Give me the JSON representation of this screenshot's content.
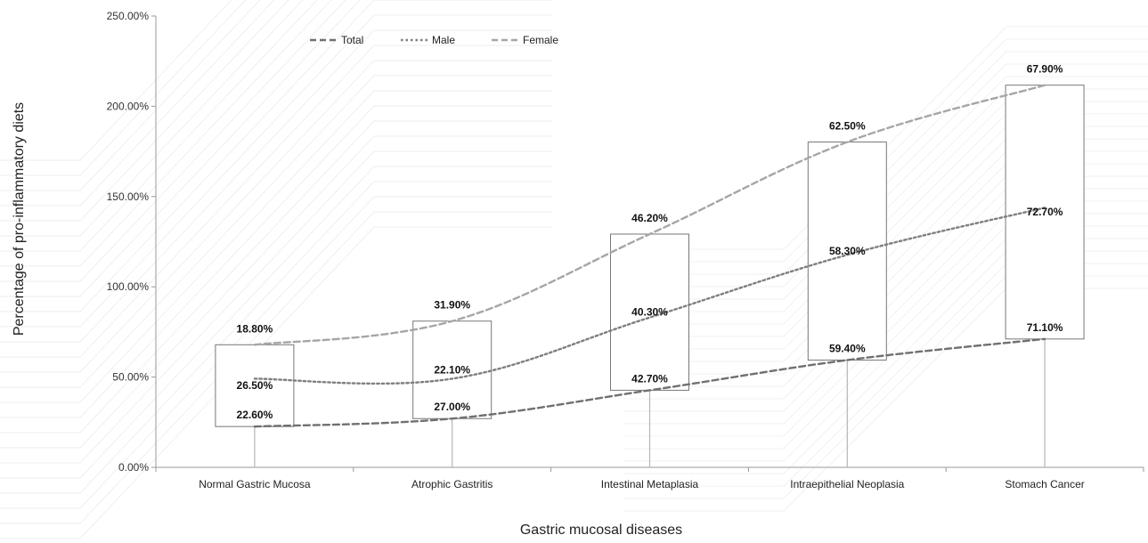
{
  "chart_data": {
    "type": "line",
    "title": "",
    "xlabel": "Gastric mucosal diseases",
    "ylabel": "Percentage  of pro-inflammatory diets",
    "ylim": [
      0,
      250
    ],
    "y_ticks": [
      0,
      50,
      100,
      150,
      200,
      250
    ],
    "y_tick_labels": [
      "0.00%",
      "50.00%",
      "100.00%",
      "150.00%",
      "200.00%",
      "250.00%"
    ],
    "categories": [
      "Normal Gastric Mucosa",
      "Atrophic Gastritis",
      "Intestinal Metaplasia",
      "Intraepithelial Neoplasia",
      "Stomach Cancer"
    ],
    "stacked": true,
    "series": [
      {
        "name": "Total",
        "values": [
          22.6,
          27.0,
          42.7,
          59.4,
          71.1
        ],
        "labels": [
          "22.60%",
          "27.00%",
          "42.70%",
          "59.40%",
          "71.10%"
        ],
        "style": "dashed",
        "color": "#707070"
      },
      {
        "name": "Male",
        "values": [
          26.5,
          22.1,
          40.3,
          58.3,
          72.7
        ],
        "labels": [
          "26.50%",
          "22.10%",
          "40.30%",
          "58.30%",
          "72.70%"
        ],
        "style": "dotted",
        "color": "#7f7f7f"
      },
      {
        "name": "Female",
        "values": [
          18.8,
          31.9,
          46.2,
          62.5,
          67.9
        ],
        "labels": [
          "18.80%",
          "31.90%",
          "46.20%",
          "62.50%",
          "67.90%"
        ],
        "style": "dashed",
        "color": "#a6a6a6"
      }
    ],
    "legend_position": "top",
    "grid": false
  }
}
